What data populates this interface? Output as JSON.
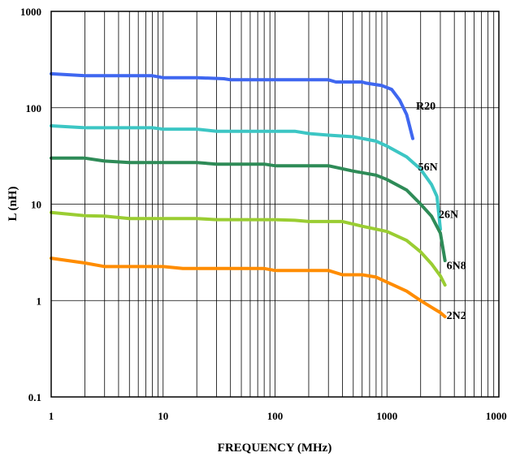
{
  "chart_data": {
    "type": "line",
    "title": "",
    "xlabel": "FREQUENCY (MHz)",
    "ylabel": "L (nH)",
    "xscale": "log",
    "yscale": "log",
    "xlim": [
      1,
      10000
    ],
    "ylim": [
      0.1,
      1000
    ],
    "grid": true,
    "x_ticks": [
      1,
      10,
      100,
      1000,
      10000
    ],
    "x_tick_labels": [
      "1",
      "10",
      "100",
      "1000",
      "10000"
    ],
    "y_ticks": [
      0.1,
      1,
      10,
      100,
      1000
    ],
    "y_tick_labels": [
      "0.1",
      "1",
      "10",
      "100",
      "1000"
    ],
    "legend": "inline labels at curve ends",
    "series": [
      {
        "name": "R20",
        "color": "#3f67f0",
        "x": [
          1,
          2,
          5,
          8,
          10,
          20,
          35,
          40,
          80,
          150,
          300,
          350,
          600,
          650,
          900,
          1100,
          1300,
          1500,
          1700
        ],
        "y": [
          225,
          215,
          215,
          215,
          205,
          205,
          200,
          195,
          195,
          195,
          195,
          185,
          185,
          180,
          170,
          155,
          120,
          85,
          48
        ]
      },
      {
        "name": "56N",
        "color": "#3cc6c4",
        "x": [
          1,
          2,
          3,
          5,
          8,
          10,
          20,
          30,
          100,
          150,
          200,
          300,
          500,
          800,
          1000,
          1500,
          2000,
          2500,
          2800,
          3000
        ],
        "y": [
          65,
          62,
          62,
          62,
          62,
          60,
          60,
          57,
          57,
          57,
          54,
          52,
          50,
          45,
          40,
          31,
          23,
          16,
          12,
          5.5
        ]
      },
      {
        "name": "26N",
        "color": "#2e8b57",
        "x": [
          1,
          2,
          3,
          5,
          10,
          20,
          30,
          80,
          100,
          200,
          300,
          500,
          800,
          1000,
          1500,
          2000,
          2500,
          3000,
          3300
        ],
        "y": [
          30,
          30,
          28,
          27,
          27,
          27,
          26,
          26,
          25,
          25,
          25,
          22,
          20,
          18,
          14,
          10,
          7.5,
          5,
          2.6
        ]
      },
      {
        "name": "6N8",
        "color": "#9acd32",
        "x": [
          1,
          2,
          3,
          5,
          10,
          20,
          30,
          100,
          150,
          200,
          400,
          600,
          1000,
          1500,
          2000,
          2500,
          3000,
          3300
        ],
        "y": [
          8.2,
          7.6,
          7.5,
          7.1,
          7.1,
          7.1,
          6.9,
          6.9,
          6.8,
          6.6,
          6.6,
          5.9,
          5.2,
          4.2,
          3.2,
          2.4,
          1.8,
          1.45
        ]
      },
      {
        "name": "2N2",
        "color": "#ff8c00",
        "x": [
          1,
          2,
          3,
          5,
          10,
          15,
          30,
          80,
          100,
          200,
          300,
          400,
          600,
          800,
          1000,
          1500,
          2000,
          2500,
          3000,
          3300
        ],
        "y": [
          2.75,
          2.45,
          2.25,
          2.25,
          2.25,
          2.15,
          2.15,
          2.15,
          2.05,
          2.05,
          2.05,
          1.85,
          1.85,
          1.75,
          1.55,
          1.25,
          1.0,
          0.85,
          0.75,
          0.68
        ]
      }
    ]
  }
}
